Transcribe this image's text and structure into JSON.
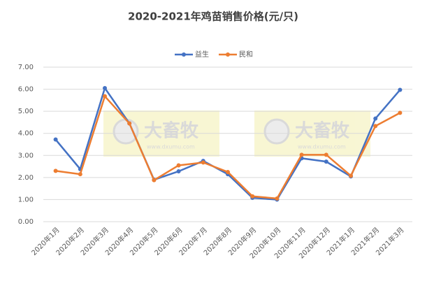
{
  "chart_data": {
    "type": "line",
    "title": "2020-2021年鸡苗销售价格(元/只)",
    "categories": [
      "2020年1月",
      "2020年2月",
      "2020年3月",
      "2020年4月",
      "2020年5月",
      "2020年6月",
      "2020年7月",
      "2020年8月",
      "2020年9月",
      "2020年10月",
      "2020年11月",
      "2020年12月",
      "2021年1月",
      "2021年2月",
      "2021年3月"
    ],
    "series": [
      {
        "name": "益生",
        "color": "#4472c4",
        "values": [
          3.72,
          2.38,
          6.05,
          4.45,
          1.9,
          2.28,
          2.75,
          2.15,
          1.08,
          1.0,
          2.87,
          2.72,
          2.05,
          4.67,
          5.97
        ]
      },
      {
        "name": "民和",
        "color": "#ed7d31",
        "values": [
          2.3,
          2.15,
          5.68,
          4.45,
          1.88,
          2.55,
          2.68,
          2.25,
          1.15,
          1.05,
          3.03,
          3.03,
          2.08,
          4.33,
          4.93
        ]
      }
    ],
    "ylim": [
      0,
      7
    ],
    "yticks": [
      {
        "value": 0,
        "label": "0.00"
      },
      {
        "value": 1,
        "label": "1.00"
      },
      {
        "value": 2,
        "label": "2.00"
      },
      {
        "value": 3,
        "label": "3.00"
      },
      {
        "value": 4,
        "label": "4.00"
      },
      {
        "value": 5,
        "label": "5.00"
      },
      {
        "value": 6,
        "label": "6.00"
      },
      {
        "value": 7,
        "label": "7.00"
      }
    ],
    "grid": true,
    "legend": "top",
    "watermarks": [
      {
        "brand": "大畜牧",
        "url": "www.dxumu.com"
      },
      {
        "brand": "大畜牧",
        "url": "www.dxumu.com"
      }
    ]
  }
}
